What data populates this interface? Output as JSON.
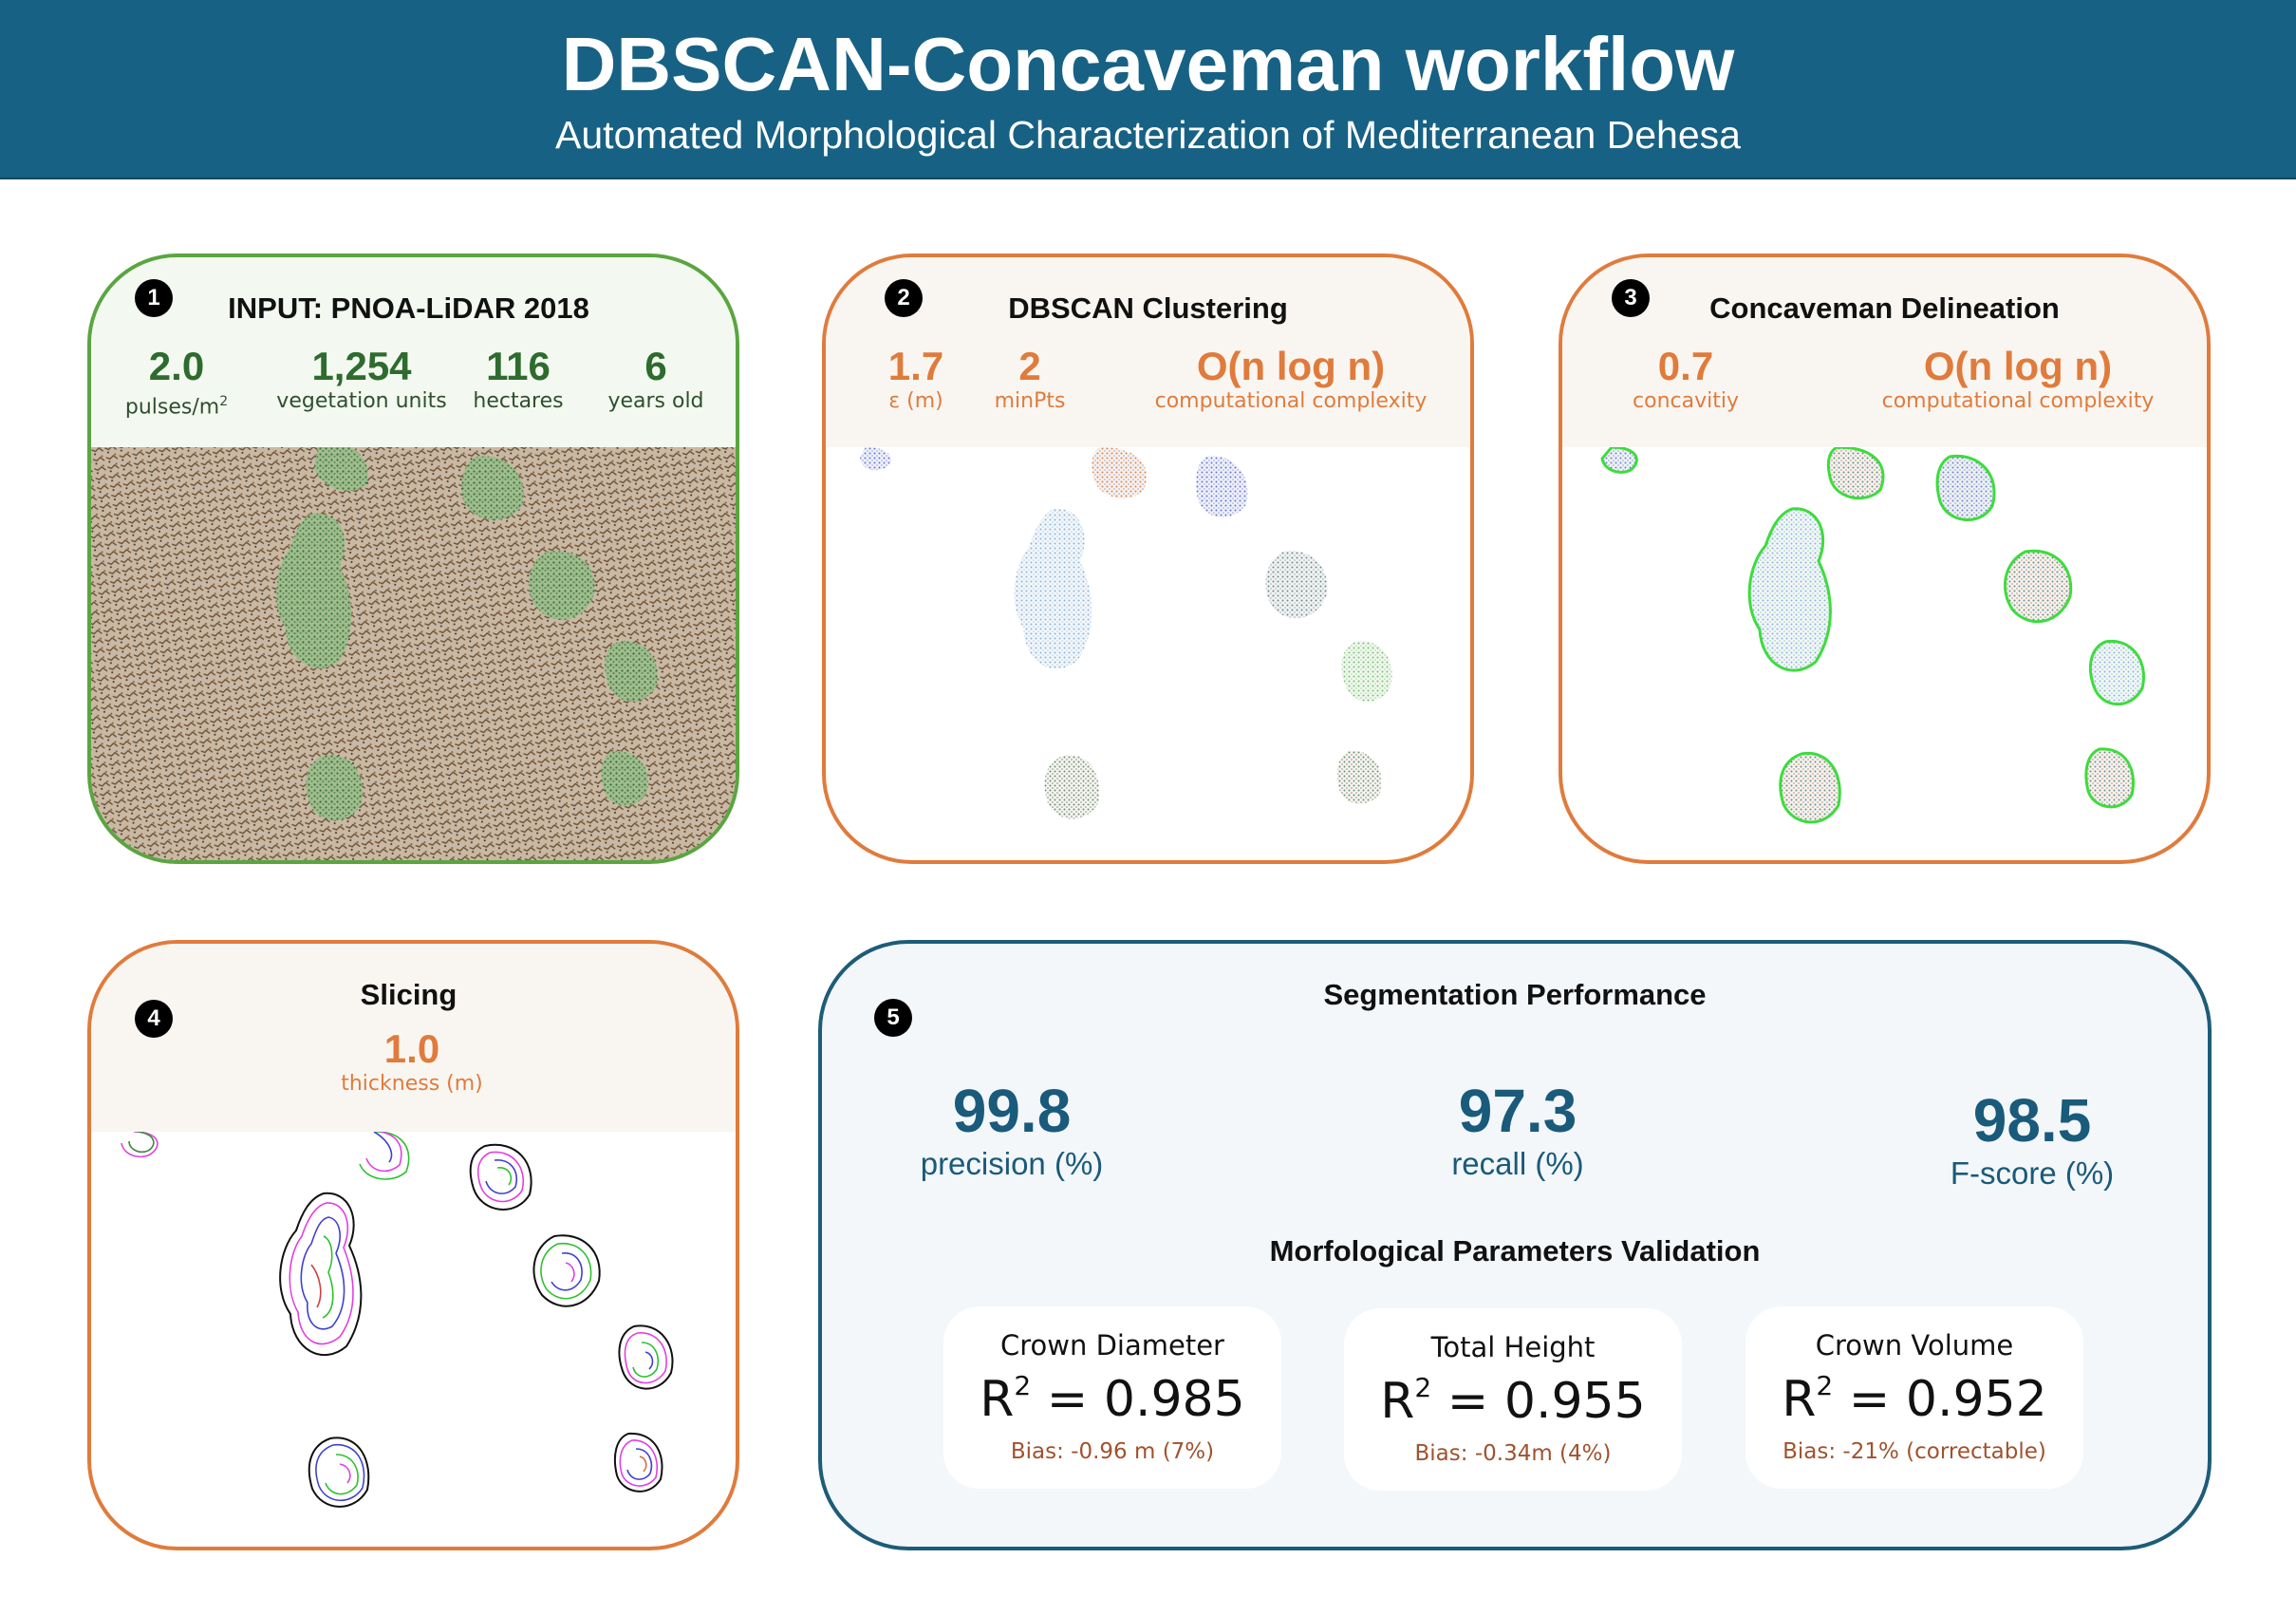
{
  "header": {
    "title": "DBSCAN-Concaveman workflow",
    "subtitle": "Automated Morphological Characterization of Mediterranean Dehesa"
  },
  "colors": {
    "header_bg": "#176184",
    "green_border": "#5aa540",
    "orange_accent": "#e07b3c",
    "blue_accent": "#1a5a7a",
    "bias_text": "#a0522d"
  },
  "panels": {
    "input": {
      "number": "1",
      "title": "INPUT: PNOA-LiDAR 2018",
      "stats": [
        {
          "value": "2.0",
          "unit": "pulses/m",
          "unit_sup": "2"
        },
        {
          "value": "1,254",
          "unit": "vegetation units"
        },
        {
          "value": "116",
          "unit": "hectares"
        },
        {
          "value": "6",
          "unit": "years old"
        }
      ],
      "image": "lidar-point-cloud"
    },
    "dbscan": {
      "number": "2",
      "title": "DBSCAN Clustering",
      "stats": [
        {
          "value": "1.7",
          "unit": "ε (m)"
        },
        {
          "value": "2",
          "unit": "minPts"
        },
        {
          "value": "O(n log n)",
          "unit": "computational complexity"
        }
      ],
      "image": "clustered-points"
    },
    "concaveman": {
      "number": "3",
      "title": "Concaveman Delineation",
      "stats": [
        {
          "value": "0.7",
          "unit": "concavitiy"
        },
        {
          "value": "O(n log n)",
          "unit": "computational complexity"
        }
      ],
      "image": "crown-outlines"
    },
    "slicing": {
      "number": "4",
      "title": "Slicing",
      "stats": [
        {
          "value": "1.0",
          "unit": "thickness (m)"
        }
      ],
      "image": "sliced-contours"
    },
    "performance": {
      "number": "5",
      "title": "Segmentation Performance",
      "metrics": [
        {
          "value": "99.8",
          "label": "precision (%)"
        },
        {
          "value": "97.3",
          "label": "recall (%)"
        },
        {
          "value": "98.5",
          "label": "F-score (%)"
        }
      ],
      "validation_title": "Morfological Parameters Validation",
      "cards": [
        {
          "name": "Crown Diameter",
          "r2_label": "R",
          "r2_sup": "2",
          "r2_value": " = 0.985",
          "bias": "Bias: -0.96 m (7%)"
        },
        {
          "name": "Total Height",
          "r2_label": "R",
          "r2_sup": "2",
          "r2_value": " = 0.955",
          "bias": "Bias: -0.34m (4%)"
        },
        {
          "name": "Crown Volume",
          "r2_label": "R",
          "r2_sup": "2",
          "r2_value": " = 0.952",
          "bias": "Bias: -21% (correctable)"
        }
      ]
    }
  }
}
